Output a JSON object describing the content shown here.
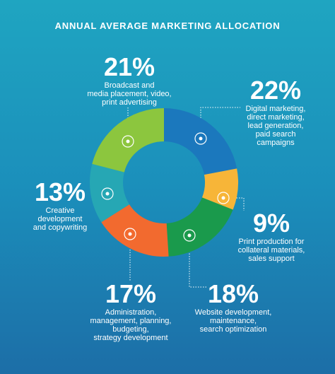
{
  "chart_data": {
    "type": "donut",
    "title": "ANNUAL AVERAGE MARKETING ALLOCATION",
    "categories": [
      "Digital marketing,\ndirect marketing,\nlead generation,\npaid search\ncampaigns",
      "Print production for\ncollateral materials,\nsales support",
      "Website development,\nmaintenance,\nsearch optimization",
      "Administration,\nmanagement, planning,\nbudgeting,\nstrategy development",
      "Creative\ndevelopment\nand copywriting",
      "Broadcast and\nmedia placement, video,\nprint advertising"
    ],
    "values": [
      22,
      9,
      18,
      17,
      13,
      21
    ],
    "value_labels": [
      "22%",
      "9%",
      "18%",
      "17%",
      "13%",
      "21%"
    ],
    "colors": [
      "#1b78bd",
      "#f7b538",
      "#1a9a4c",
      "#f26a2f",
      "#26a7b4",
      "#8cc63e"
    ]
  }
}
